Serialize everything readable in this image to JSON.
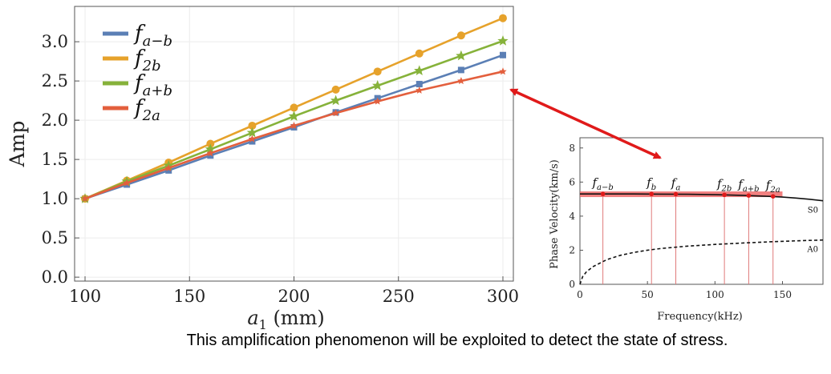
{
  "colors": {
    "f_a_minus_b": "#5b7fb5",
    "f_2b": "#e6a22b",
    "f_a_plus_b": "#86b23a",
    "f_2a": "#e35f3d",
    "arrow": "#e01a1a",
    "s0_band": "#ee6a6a"
  },
  "chart_data": [
    {
      "type": "line",
      "xlabel": "a",
      "xlabel_sub": "1",
      "xlabel_unit": "(mm)",
      "ylabel": "Amp",
      "xlim": [
        95,
        305
      ],
      "ylim": [
        -0.05,
        3.45
      ],
      "x_ticks": [
        100,
        150,
        200,
        250,
        300
      ],
      "y_ticks": [
        "0.0",
        "0.5",
        "1.0",
        "1.5",
        "2.0",
        "2.5",
        "3.0"
      ],
      "legend_position": "top-left",
      "x": [
        100,
        120,
        140,
        160,
        180,
        200,
        220,
        240,
        260,
        280,
        300
      ],
      "series": [
        {
          "name": "f",
          "sub": "a−b",
          "marker": "square",
          "color_key": "f_a_minus_b",
          "values": [
            1.0,
            1.18,
            1.36,
            1.55,
            1.73,
            1.91,
            2.1,
            2.28,
            2.46,
            2.64,
            2.83
          ]
        },
        {
          "name": "f",
          "sub": "2b",
          "marker": "circle",
          "color_key": "f_2b",
          "values": [
            1.0,
            1.23,
            1.46,
            1.7,
            1.93,
            2.16,
            2.39,
            2.62,
            2.85,
            3.08,
            3.3
          ]
        },
        {
          "name": "f",
          "sub": "a+b",
          "marker": "star",
          "color_key": "f_a_plus_b",
          "values": [
            1.0,
            1.22,
            1.42,
            1.63,
            1.84,
            2.05,
            2.25,
            2.44,
            2.63,
            2.82,
            3.01
          ]
        },
        {
          "name": "f",
          "sub": "2a",
          "marker": "star-small",
          "color_key": "f_2a",
          "values": [
            1.0,
            1.2,
            1.39,
            1.58,
            1.76,
            1.93,
            2.09,
            2.24,
            2.38,
            2.5,
            2.62
          ]
        }
      ]
    },
    {
      "type": "line",
      "xlabel": "Frequency(kHz)",
      "ylabel": "Phase Velocity(km/s)",
      "xlim": [
        0,
        180
      ],
      "ylim": [
        0,
        8.6
      ],
      "x_ticks": [
        0,
        50,
        100,
        150
      ],
      "y_ticks": [
        0,
        2,
        4,
        6,
        8
      ],
      "series": [
        {
          "name": "S0",
          "style": "solid",
          "x": [
            0,
            20,
            40,
            60,
            80,
            100,
            120,
            140,
            150,
            160,
            170,
            180
          ],
          "values": [
            5.3,
            5.3,
            5.3,
            5.29,
            5.28,
            5.26,
            5.22,
            5.16,
            5.12,
            5.06,
            4.99,
            4.9
          ]
        },
        {
          "name": "A0",
          "style": "dashed",
          "x": [
            0,
            2,
            5,
            10,
            20,
            30,
            40,
            50,
            60,
            80,
            100,
            120,
            140,
            160,
            180
          ],
          "values": [
            0,
            0.45,
            0.75,
            1.05,
            1.45,
            1.7,
            1.87,
            2.0,
            2.1,
            2.24,
            2.34,
            2.42,
            2.49,
            2.55,
            2.6
          ]
        }
      ],
      "markers": [
        {
          "label": "f",
          "sub": "a−b",
          "x": 17,
          "y": 5.3
        },
        {
          "label": "f",
          "sub": "b",
          "x": 53,
          "y": 5.3
        },
        {
          "label": "f",
          "sub": "a",
          "x": 71,
          "y": 5.29
        },
        {
          "label": "f",
          "sub": "2b",
          "x": 107,
          "y": 5.25
        },
        {
          "label": "f",
          "sub": "a+b",
          "x": 125,
          "y": 5.21
        },
        {
          "label": "f",
          "sub": "2a",
          "x": 143,
          "y": 5.16
        }
      ]
    }
  ],
  "caption": "This amplification phenomenon will be exploited to detect the state of stress."
}
